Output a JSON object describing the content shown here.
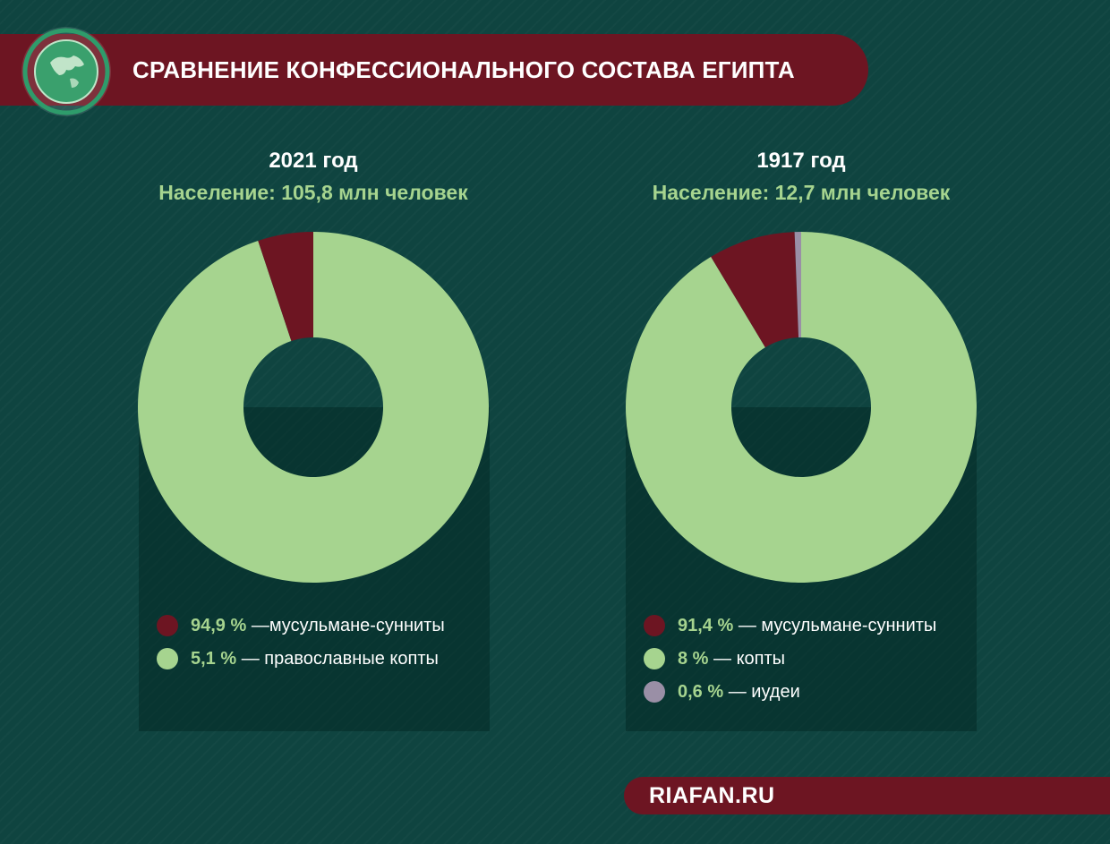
{
  "header": {
    "title": "СРАВНЕНИЕ КОНФЕССИОНАЛЬНОГО СОСТАВА ЕГИПТА"
  },
  "footer": {
    "brand": "RIAFAN.RU"
  },
  "colors": {
    "background": "#0f4440",
    "accent_red": "#6d1522",
    "sunni": "#6d1522",
    "copts": "#a6d48f",
    "jews": "#9a8fa6",
    "green_text": "#a6d48f"
  },
  "chart_data": [
    {
      "type": "pie",
      "title": "2021 год",
      "subtitle": "Население: 105,8 млн человек",
      "series": [
        {
          "name": "мусульмане-сунниты",
          "value": 94.9,
          "pct_label": "94,9 %",
          "sep": "—",
          "color": "#a6d48f"
        },
        {
          "name": "православные копты",
          "value": 5.1,
          "pct_label": "5,1 %",
          "sep": " — ",
          "color": "#6d1522"
        }
      ],
      "legend": [
        {
          "pct": "94,9 %",
          "text": " —мусульмане-сунниты",
          "color": "#6d1522"
        },
        {
          "pct": "5,1 %",
          "text": " — православные копты",
          "color": "#a6d48f"
        }
      ]
    },
    {
      "type": "pie",
      "title": "1917 год",
      "subtitle": "Население: 12,7 млн человек",
      "series": [
        {
          "name": "мусульмане-сунниты",
          "value": 91.4,
          "color": "#a6d48f"
        },
        {
          "name": "копты",
          "value": 8,
          "color": "#6d1522"
        },
        {
          "name": "иудеи",
          "value": 0.6,
          "color": "#9a8fa6"
        }
      ],
      "legend": [
        {
          "pct": "91,4 %",
          "text": " — мусульмане-сунниты",
          "color": "#6d1522"
        },
        {
          "pct": "8 %",
          "text": " — копты",
          "color": "#a6d48f"
        },
        {
          "pct": "0,6 %",
          "text": " — иудеи",
          "color": "#9a8fa6"
        }
      ]
    }
  ]
}
